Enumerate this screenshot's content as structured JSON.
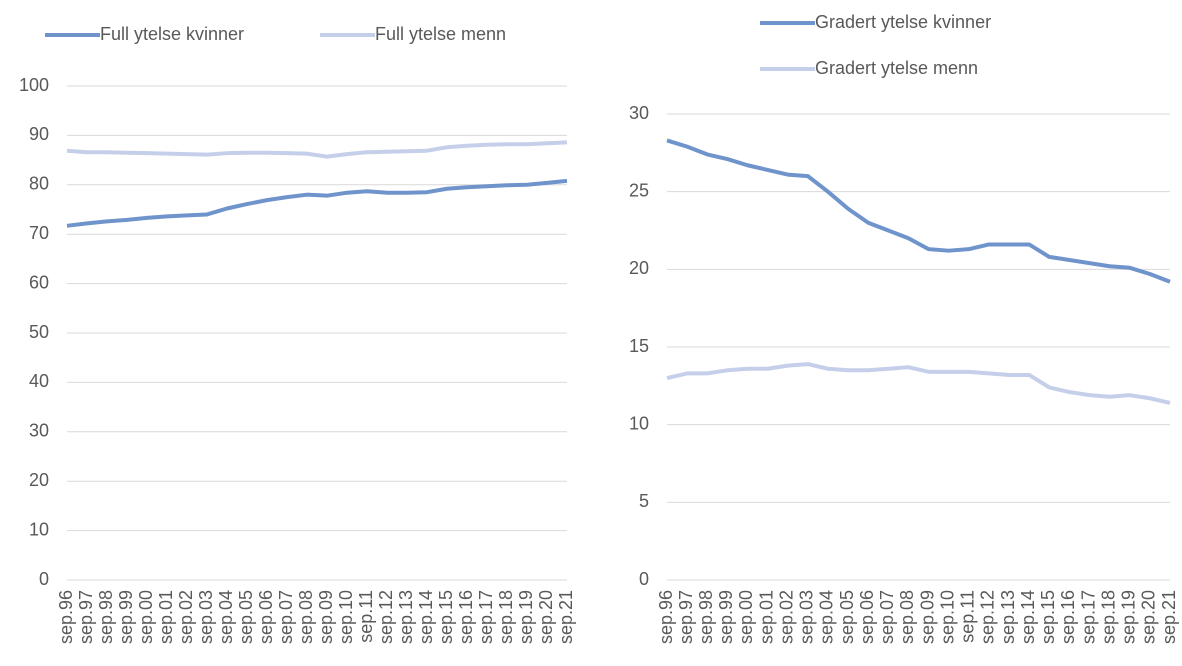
{
  "chart_data": [
    {
      "type": "line",
      "legend": "top",
      "grid": true,
      "categories": [
        "sep.96",
        "sep.97",
        "sep.98",
        "sep.99",
        "sep.00",
        "sep.01",
        "sep.02",
        "sep.03",
        "sep.04",
        "sep.05",
        "sep.06",
        "sep.07",
        "sep.08",
        "sep.09",
        "sep.10",
        "sep.11",
        "sep.12",
        "sep.13",
        "sep.14",
        "sep.15",
        "sep.16",
        "sep.17",
        "sep.18",
        "sep.19",
        "sep.20",
        "sep.21"
      ],
      "ylim": [
        0,
        100
      ],
      "yticks": [
        0,
        10,
        20,
        30,
        40,
        50,
        60,
        70,
        80,
        90,
        100
      ],
      "series": [
        {
          "name": "Full ytelse kvinner",
          "color": "#6f94cc",
          "values": [
            71.7,
            72.2,
            72.6,
            72.9,
            73.3,
            73.6,
            73.8,
            74.0,
            75.2,
            76.1,
            76.9,
            77.5,
            78.0,
            77.8,
            78.4,
            78.7,
            78.4,
            78.4,
            78.5,
            79.2,
            79.5,
            79.7,
            79.9,
            80.0,
            80.4,
            80.8
          ]
        },
        {
          "name": "Full ytelse menn",
          "color": "#c5cfea",
          "values": [
            86.9,
            86.6,
            86.6,
            86.5,
            86.4,
            86.3,
            86.2,
            86.1,
            86.4,
            86.5,
            86.5,
            86.4,
            86.3,
            85.7,
            86.2,
            86.6,
            86.7,
            86.8,
            86.9,
            87.6,
            87.9,
            88.1,
            88.2,
            88.2,
            88.4,
            88.6
          ]
        }
      ]
    },
    {
      "type": "line",
      "legend": "top-right",
      "grid": true,
      "categories": [
        "sep.96",
        "sep.97",
        "sep.98",
        "sep.99",
        "sep.00",
        "sep.01",
        "sep.02",
        "sep.03",
        "sep.04",
        "sep.05",
        "sep.06",
        "sep.07",
        "sep.08",
        "sep.09",
        "sep.10",
        "sep.11",
        "sep.12",
        "sep.13",
        "sep.14",
        "sep.15",
        "sep.16",
        "sep.17",
        "sep.18",
        "sep.19",
        "sep.20",
        "sep.21"
      ],
      "ylim": [
        0,
        30
      ],
      "yticks": [
        0,
        5,
        10,
        15,
        20,
        25,
        30
      ],
      "series": [
        {
          "name": "Gradert ytelse kvinner",
          "color": "#6f94cc",
          "values": [
            28.3,
            27.9,
            27.4,
            27.1,
            26.7,
            26.4,
            26.1,
            26.0,
            25.0,
            23.9,
            23.0,
            22.5,
            22.0,
            21.3,
            21.2,
            21.3,
            21.6,
            21.6,
            21.6,
            20.8,
            20.6,
            20.4,
            20.2,
            20.1,
            19.7,
            19.2
          ]
        },
        {
          "name": "Gradert ytelse menn",
          "color": "#c5cfea",
          "values": [
            13.0,
            13.3,
            13.3,
            13.5,
            13.6,
            13.6,
            13.8,
            13.9,
            13.6,
            13.5,
            13.5,
            13.6,
            13.7,
            13.4,
            13.4,
            13.4,
            13.3,
            13.2,
            13.2,
            12.4,
            12.1,
            11.9,
            11.8,
            11.9,
            11.7,
            11.4
          ]
        }
      ]
    }
  ]
}
